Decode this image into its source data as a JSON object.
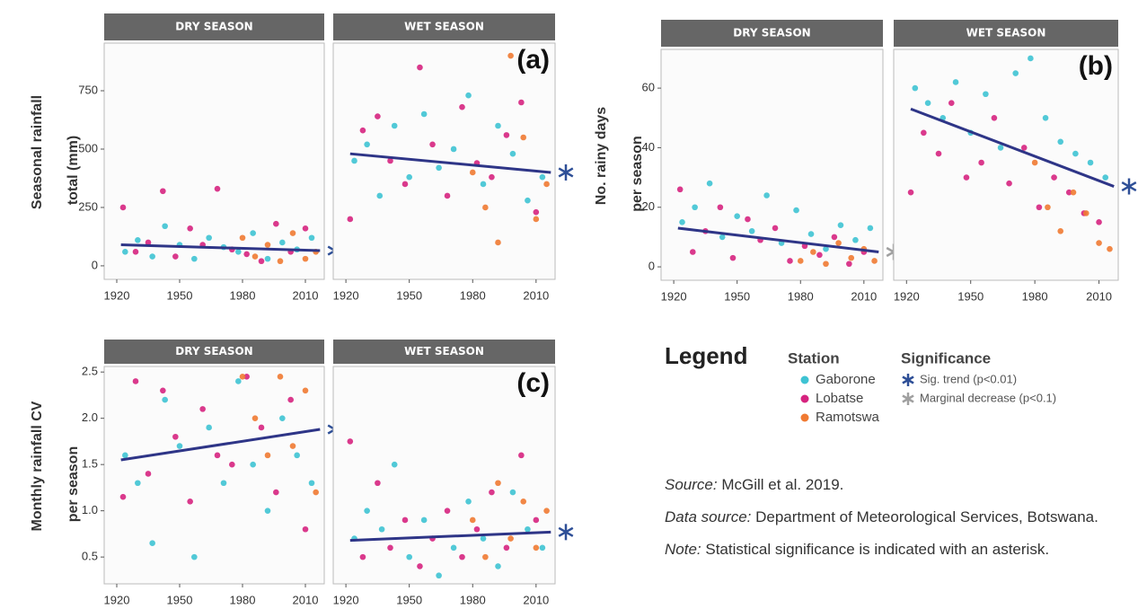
{
  "chart_data": [
    {
      "type": "scatter",
      "title": "DRY SEASON",
      "ylabel": [
        "Seasonal rainfall",
        "total (mm)"
      ],
      "xlim": [
        1914,
        2019
      ],
      "xticks": [
        1920,
        1950,
        1980,
        2010
      ],
      "ylim": [
        -58,
        954
      ],
      "yticks": [
        0,
        250,
        500,
        750
      ],
      "series": [
        {
          "name": "Gaborone",
          "color": "#3ec3d3",
          "x": [
            1924,
            1930,
            1937,
            1943,
            1950,
            1957,
            1964,
            1971,
            1978,
            1985,
            1992,
            1999,
            2006,
            2013
          ],
          "values": [
            60,
            110,
            40,
            170,
            90,
            30,
            120,
            80,
            60,
            140,
            30,
            100,
            70,
            120
          ]
        },
        {
          "name": "Lobatse",
          "color": "#d6237f",
          "x": [
            1923,
            1929,
            1935,
            1942,
            1948,
            1955,
            1961,
            1968,
            1975,
            1982,
            1989,
            1996,
            2003,
            2010
          ],
          "values": [
            250,
            60,
            100,
            320,
            40,
            160,
            90,
            330,
            70,
            50,
            20,
            180,
            60,
            160
          ]
        },
        {
          "name": "Ramotswa",
          "color": "#f07a32",
          "x": [
            1980,
            1986,
            1992,
            1998,
            2004,
            2010,
            2015
          ],
          "values": [
            120,
            40,
            90,
            20,
            140,
            30,
            60
          ]
        }
      ],
      "trend": {
        "x": [
          1922,
          2017
        ],
        "values": [
          90,
          65
        ],
        "color": "#2e3587"
      },
      "significance": "sig"
    },
    {
      "type": "scatter",
      "title": "WET SEASON",
      "annotation": "(a)",
      "xlim": [
        1914,
        2019
      ],
      "xticks": [
        1920,
        1950,
        1980,
        2010
      ],
      "ylim": [
        -58,
        954
      ],
      "series": [
        {
          "name": "Gaborone",
          "color": "#3ec3d3",
          "x": [
            1924,
            1930,
            1936,
            1943,
            1950,
            1957,
            1964,
            1971,
            1978,
            1985,
            1992,
            1999,
            2006,
            2013
          ],
          "values": [
            450,
            520,
            300,
            600,
            380,
            650,
            420,
            500,
            730,
            350,
            600,
            480,
            280,
            380
          ]
        },
        {
          "name": "Lobatse",
          "color": "#d6237f",
          "x": [
            1922,
            1928,
            1935,
            1941,
            1948,
            1955,
            1961,
            1968,
            1975,
            1982,
            1989,
            1996,
            2003,
            2010
          ],
          "values": [
            200,
            580,
            640,
            450,
            350,
            850,
            520,
            300,
            680,
            440,
            380,
            560,
            700,
            230
          ]
        },
        {
          "name": "Ramotswa",
          "color": "#f07a32",
          "x": [
            1980,
            1986,
            1992,
            1998,
            2004,
            2010,
            2015
          ],
          "values": [
            400,
            250,
            100,
            900,
            550,
            200,
            350
          ]
        }
      ],
      "trend": {
        "x": [
          1922,
          2017
        ],
        "values": [
          480,
          400
        ],
        "color": "#2e3587"
      },
      "significance": "sig"
    },
    {
      "type": "scatter",
      "title": "DRY SEASON",
      "ylabel": [
        "No. rainy days",
        "per season"
      ],
      "xlim": [
        1914,
        2019
      ],
      "xticks": [
        1920,
        1950,
        1980,
        2010
      ],
      "ylim": [
        -4.5,
        73
      ],
      "yticks": [
        0,
        20,
        40,
        60
      ],
      "series": [
        {
          "name": "Gaborone",
          "color": "#3ec3d3",
          "x": [
            1924,
            1930,
            1937,
            1943,
            1950,
            1957,
            1964,
            1971,
            1978,
            1985,
            1992,
            1999,
            2006,
            2013
          ],
          "values": [
            15,
            20,
            28,
            10,
            17,
            12,
            24,
            8,
            19,
            11,
            6,
            14,
            9,
            13
          ]
        },
        {
          "name": "Lobatse",
          "color": "#d6237f",
          "x": [
            1923,
            1929,
            1935,
            1942,
            1948,
            1955,
            1961,
            1968,
            1975,
            1982,
            1989,
            1996,
            2003,
            2010
          ],
          "values": [
            26,
            5,
            12,
            20,
            3,
            16,
            9,
            13,
            2,
            7,
            4,
            10,
            1,
            5
          ]
        },
        {
          "name": "Ramotswa",
          "color": "#f07a32",
          "x": [
            1980,
            1986,
            1992,
            1998,
            2004,
            2010,
            2015
          ],
          "values": [
            2,
            5,
            1,
            8,
            3,
            6,
            2
          ]
        }
      ],
      "trend": {
        "x": [
          1922,
          2017
        ],
        "values": [
          13,
          5
        ],
        "color": "#2e3587"
      },
      "significance": "marginal"
    },
    {
      "type": "scatter",
      "title": "WET SEASON",
      "annotation": "(b)",
      "xlim": [
        1914,
        2019
      ],
      "xticks": [
        1920,
        1950,
        1980,
        2010
      ],
      "ylim": [
        -4.5,
        73
      ],
      "series": [
        {
          "name": "Gaborone",
          "color": "#3ec3d3",
          "x": [
            1924,
            1930,
            1937,
            1943,
            1950,
            1957,
            1964,
            1971,
            1978,
            1985,
            1992,
            1999,
            2006,
            2013
          ],
          "values": [
            60,
            55,
            50,
            62,
            45,
            58,
            40,
            65,
            70,
            50,
            42,
            38,
            35,
            30
          ]
        },
        {
          "name": "Lobatse",
          "color": "#d6237f",
          "x": [
            1922,
            1928,
            1935,
            1941,
            1948,
            1955,
            1961,
            1968,
            1975,
            1982,
            1989,
            1996,
            2003,
            2010
          ],
          "values": [
            25,
            45,
            38,
            55,
            30,
            35,
            50,
            28,
            40,
            20,
            30,
            25,
            18,
            15
          ]
        },
        {
          "name": "Ramotswa",
          "color": "#f07a32",
          "x": [
            1980,
            1986,
            1992,
            1998,
            2004,
            2010,
            2015
          ],
          "values": [
            35,
            20,
            12,
            25,
            18,
            8,
            6
          ]
        }
      ],
      "trend": {
        "x": [
          1922,
          2017
        ],
        "values": [
          53,
          27
        ],
        "color": "#2e3587"
      },
      "significance": "sig"
    },
    {
      "type": "scatter",
      "title": "DRY SEASON",
      "ylabel": [
        "Monthly rainfall CV",
        "per season"
      ],
      "xlim": [
        1914,
        2019
      ],
      "xticks": [
        1920,
        1950,
        1980,
        2010
      ],
      "ylim": [
        0.21,
        2.56
      ],
      "yticks": [
        0.5,
        {
          "value": 1,
          "label": "1.0"
        },
        1.5,
        {
          "value": 2,
          "label": "2.0"
        },
        2.5
      ],
      "series": [
        {
          "name": "Gaborone",
          "color": "#3ec3d3",
          "x": [
            1924,
            1930,
            1937,
            1943,
            1950,
            1957,
            1964,
            1971,
            1978,
            1985,
            1992,
            1999,
            2006,
            2013
          ],
          "values": [
            1.6,
            1.3,
            0.65,
            2.2,
            1.7,
            0.5,
            1.9,
            1.3,
            2.4,
            1.5,
            1.0,
            2.0,
            1.6,
            1.3
          ]
        },
        {
          "name": "Lobatse",
          "color": "#d6237f",
          "x": [
            1923,
            1929,
            1935,
            1942,
            1948,
            1955,
            1961,
            1968,
            1975,
            1982,
            1989,
            1996,
            2003,
            2010
          ],
          "values": [
            1.15,
            2.4,
            1.4,
            2.3,
            1.8,
            1.1,
            2.1,
            1.6,
            1.5,
            2.45,
            1.9,
            1.2,
            2.2,
            0.8
          ]
        },
        {
          "name": "Ramotswa",
          "color": "#f07a32",
          "x": [
            1980,
            1986,
            1992,
            1998,
            2004,
            2010,
            2015
          ],
          "values": [
            2.45,
            2.0,
            1.6,
            2.45,
            1.7,
            2.3,
            1.2
          ]
        }
      ],
      "trend": {
        "x": [
          1922,
          2017
        ],
        "values": [
          1.55,
          1.88
        ],
        "color": "#2e3587"
      },
      "significance": "sig"
    },
    {
      "type": "scatter",
      "title": "WET SEASON",
      "annotation": "(c)",
      "xlim": [
        1914,
        2019
      ],
      "xticks": [
        1920,
        1950,
        1980,
        2010
      ],
      "ylim": [
        0.21,
        2.56
      ],
      "series": [
        {
          "name": "Gaborone",
          "color": "#3ec3d3",
          "x": [
            1924,
            1930,
            1937,
            1943,
            1950,
            1957,
            1964,
            1971,
            1978,
            1985,
            1992,
            1999,
            2006,
            2013
          ],
          "values": [
            0.7,
            1.0,
            0.8,
            1.5,
            0.5,
            0.9,
            0.3,
            0.6,
            1.1,
            0.7,
            0.4,
            1.2,
            0.8,
            0.6
          ]
        },
        {
          "name": "Lobatse",
          "color": "#d6237f",
          "x": [
            1922,
            1928,
            1935,
            1941,
            1948,
            1955,
            1961,
            1968,
            1975,
            1982,
            1989,
            1996,
            2003,
            2010
          ],
          "values": [
            1.75,
            0.5,
            1.3,
            0.6,
            0.9,
            0.4,
            0.7,
            1.0,
            0.5,
            0.8,
            1.2,
            0.6,
            1.6,
            0.9
          ]
        },
        {
          "name": "Ramotswa",
          "color": "#f07a32",
          "x": [
            1980,
            1986,
            1992,
            1998,
            2004,
            2010,
            2015
          ],
          "values": [
            0.9,
            0.5,
            1.3,
            0.7,
            1.1,
            0.6,
            1.0
          ]
        }
      ],
      "trend": {
        "x": [
          1922,
          2017
        ],
        "values": [
          0.68,
          0.77
        ],
        "color": "#2e3587"
      },
      "significance": "sig"
    }
  ],
  "legend": {
    "title": "Legend",
    "station_title": "Station",
    "significance_title": "Significance",
    "items": [
      {
        "kind": "sig",
        "label": "Sig. trend (p<0.01)",
        "color": "#2e4f97"
      },
      {
        "kind": "marginal",
        "label": "Marginal decrease (p<0.1)",
        "color": "#a0a0a0"
      }
    ]
  },
  "notes": [
    {
      "label": "Source:",
      "text": "McGill et al. 2019."
    },
    {
      "label": "Data source:",
      "text": "Department of Meteorological Services, Botswana."
    },
    {
      "label": "Note:",
      "text": "Statistical significance is indicated with an asterisk."
    }
  ]
}
